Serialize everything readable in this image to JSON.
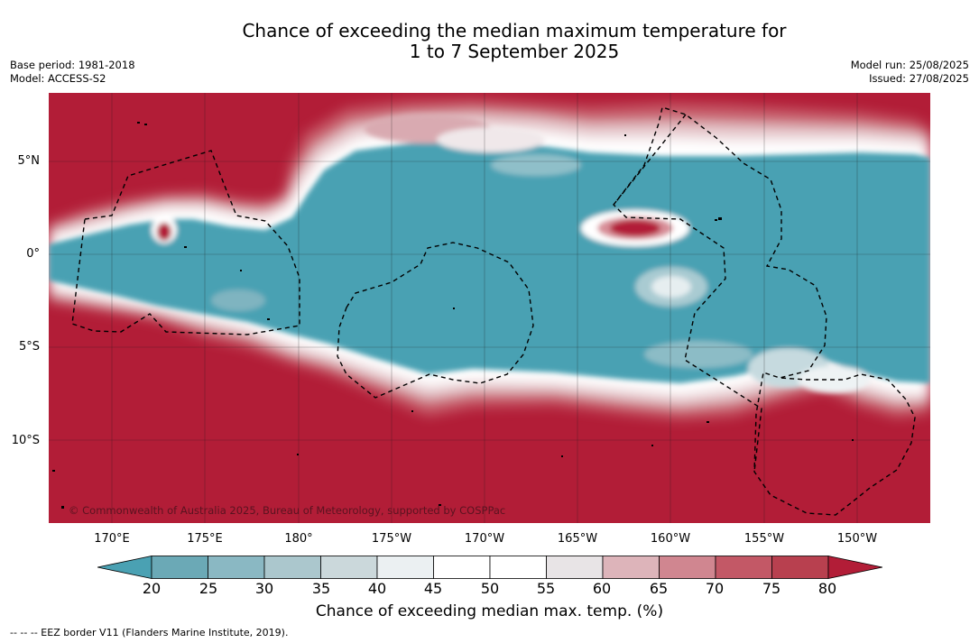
{
  "title": {
    "line1": "Chance of exceeding the median maximum temperature for",
    "line2": "1 to 7 September 2025"
  },
  "meta_left": {
    "base_period": "Base period: 1981-2018",
    "model": "Model: ACCESS-S2"
  },
  "meta_right": {
    "model_run": "Model run: 25/08/2025",
    "issued": "Issued: 27/08/2025"
  },
  "map": {
    "copyright": "© Commonwealth of Australia 2025, Bureau of Meteorology, supported by COSPPac",
    "lat_labels": [
      "5°N",
      "0°",
      "5°S",
      "10°S"
    ],
    "lon_labels": [
      "170°E",
      "175°E",
      "180°",
      "175°W",
      "170°W",
      "165°W",
      "160°W",
      "155°W",
      "150°W"
    ],
    "colors": {
      "ocean_below": "#4aa1b3",
      "high": "#b21d37",
      "mid_white": "#ffffff"
    }
  },
  "colorbar": {
    "ticks": [
      "20",
      "25",
      "30",
      "35",
      "40",
      "45",
      "50",
      "55",
      "60",
      "65",
      "70",
      "75",
      "80"
    ],
    "colors": [
      "#4aa1b3",
      "#6ba9b6",
      "#8ab8c3",
      "#abc7cd",
      "#cbd8db",
      "#ebf0f2",
      "#ffffff",
      "#ffffff",
      "#e8e4e6",
      "#ddb4ba",
      "#d08690",
      "#c35866",
      "#b8404f",
      "#b21d37"
    ],
    "label": "Chance of exceeding median max. temp. (%)"
  },
  "footnote": "--  --  -- EEZ border V11 (Flanders Marine Institute, 2019)."
}
